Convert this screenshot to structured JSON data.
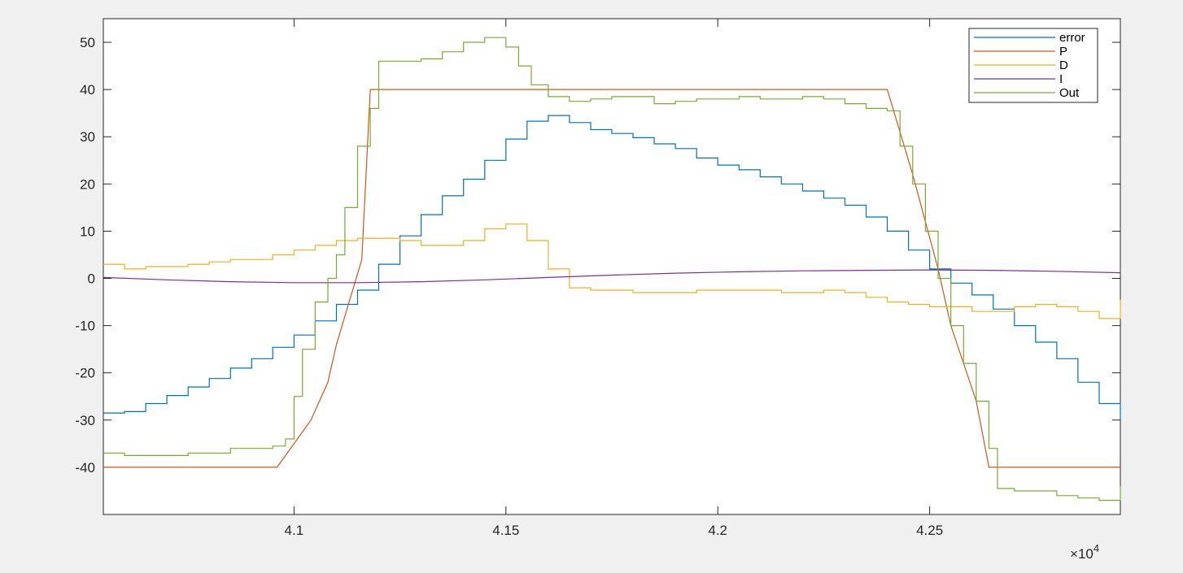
{
  "chart_data": {
    "type": "line",
    "title": "",
    "xlabel": "",
    "ylabel": "",
    "x_exponent_label": "10",
    "x_exponent_power": "4",
    "x_exponent_prefix": "×",
    "xlim": [
      40550,
      42950
    ],
    "ylim": [
      -50,
      55
    ],
    "xticks": [
      41000,
      41500,
      42000,
      42500
    ],
    "xtick_labels": [
      "4.1",
      "4.15",
      "4.2",
      "4.25"
    ],
    "yticks": [
      -40,
      -30,
      -20,
      -10,
      0,
      10,
      20,
      30,
      40,
      50
    ],
    "ytick_labels": [
      "-40",
      "-30",
      "-20",
      "-10",
      "0",
      "10",
      "20",
      "30",
      "40",
      "50"
    ],
    "grid": false,
    "legend_position": "top-right",
    "series": [
      {
        "name": "error",
        "color": "#0072BD",
        "x": [
          40550,
          40600,
          40650,
          40700,
          40750,
          40800,
          40850,
          40900,
          40950,
          41000,
          41050,
          41100,
          41150,
          41200,
          41250,
          41300,
          41350,
          41400,
          41450,
          41500,
          41550,
          41600,
          41650,
          41700,
          41750,
          41800,
          41850,
          41900,
          41950,
          42000,
          42050,
          42100,
          42150,
          42200,
          42250,
          42300,
          42350,
          42400,
          42450,
          42500,
          42550,
          42600,
          42650,
          42700,
          42750,
          42800,
          42850,
          42900,
          42950
        ],
        "y": [
          -28.5,
          -28.2,
          -26.5,
          -24.8,
          -23,
          -21.2,
          -19,
          -17,
          -14.6,
          -12,
          -9,
          -5.5,
          -2.5,
          3,
          9,
          13.5,
          17.5,
          21,
          25,
          29.5,
          33.3,
          34.5,
          33,
          31.5,
          30.7,
          29.8,
          28.5,
          27.5,
          25.5,
          24,
          23,
          21.5,
          20,
          18.5,
          17,
          15.5,
          13,
          10,
          6,
          2,
          -1,
          -3.5,
          -6.5,
          -10,
          -13.5,
          -17,
          -22,
          -26.5,
          -30
        ]
      },
      {
        "name": "P",
        "color": "#D95319",
        "x": [
          40550,
          40960,
          41040,
          41080,
          41100,
          41130,
          41160,
          41180,
          42400,
          42430,
          42460,
          42490,
          42520,
          42550,
          42580,
          42610,
          42640,
          42950
        ],
        "y": [
          -40,
          -40,
          -30,
          -22,
          -14,
          -5,
          4,
          40,
          40,
          31,
          22,
          12,
          2,
          -10,
          -18,
          -26,
          -40,
          -40
        ]
      },
      {
        "name": "D",
        "color": "#EDB120",
        "x": [
          40550,
          40600,
          40650,
          40700,
          40750,
          40800,
          40850,
          40900,
          40950,
          41000,
          41050,
          41100,
          41150,
          41200,
          41250,
          41300,
          41350,
          41400,
          41450,
          41500,
          41550,
          41600,
          41650,
          41700,
          41750,
          41800,
          41850,
          41900,
          41950,
          42000,
          42050,
          42100,
          42150,
          42200,
          42250,
          42300,
          42350,
          42400,
          42450,
          42500,
          42550,
          42600,
          42650,
          42700,
          42750,
          42800,
          42850,
          42900,
          42950
        ],
        "y": [
          3,
          2,
          2.5,
          2.5,
          3,
          3.5,
          4,
          4,
          5,
          6,
          7,
          8,
          8.5,
          8.5,
          8,
          7,
          7,
          8,
          10.5,
          11.5,
          8,
          2,
          -2,
          -2.5,
          -2.5,
          -3,
          -3,
          -3,
          -2.5,
          -2.5,
          -2.5,
          -2.5,
          -3,
          -3,
          -2.5,
          -3,
          -4,
          -5,
          -5.5,
          -6,
          -6,
          -7,
          -7,
          -6,
          -5.5,
          -6,
          -7,
          -8.5,
          -4.5
        ]
      },
      {
        "name": "I",
        "color": "#7E2F8E",
        "x": [
          40550,
          40700,
          40850,
          41000,
          41150,
          41300,
          41450,
          41600,
          41750,
          41900,
          42050,
          42200,
          42350,
          42500,
          42650,
          42800,
          42950
        ],
        "y": [
          0.2,
          -0.3,
          -0.7,
          -0.9,
          -0.9,
          -0.7,
          -0.3,
          0.2,
          0.7,
          1.1,
          1.4,
          1.6,
          1.7,
          1.8,
          1.7,
          1.5,
          1.2
        ]
      },
      {
        "name": "Out",
        "color": "#77AC30",
        "x": [
          40550,
          40600,
          40650,
          40700,
          40750,
          40800,
          40850,
          40900,
          40950,
          40980,
          41000,
          41020,
          41050,
          41080,
          41100,
          41120,
          41150,
          41180,
          41200,
          41250,
          41300,
          41350,
          41400,
          41450,
          41480,
          41500,
          41530,
          41560,
          41600,
          41650,
          41700,
          41750,
          41800,
          41850,
          41900,
          41950,
          42000,
          42050,
          42100,
          42150,
          42200,
          42250,
          42300,
          42350,
          42400,
          42430,
          42460,
          42490,
          42520,
          42550,
          42580,
          42610,
          42640,
          42660,
          42700,
          42750,
          42800,
          42850,
          42900,
          42950
        ],
        "y": [
          -37,
          -37.5,
          -37.5,
          -37.5,
          -37,
          -37,
          -36,
          -36,
          -35.5,
          -34,
          -25,
          -15,
          -5,
          0,
          5,
          15,
          28,
          36,
          46,
          46,
          46.5,
          48,
          50,
          51,
          51,
          49,
          45,
          41,
          38.5,
          37.5,
          38,
          38.5,
          38.5,
          37,
          37.5,
          38,
          38,
          38.5,
          38,
          38,
          38.5,
          38,
          37,
          36,
          35.5,
          28,
          20,
          10,
          0,
          -10,
          -18,
          -26,
          -36,
          -44.5,
          -45,
          -45,
          -46,
          -46.5,
          -47,
          -44
        ]
      }
    ]
  }
}
